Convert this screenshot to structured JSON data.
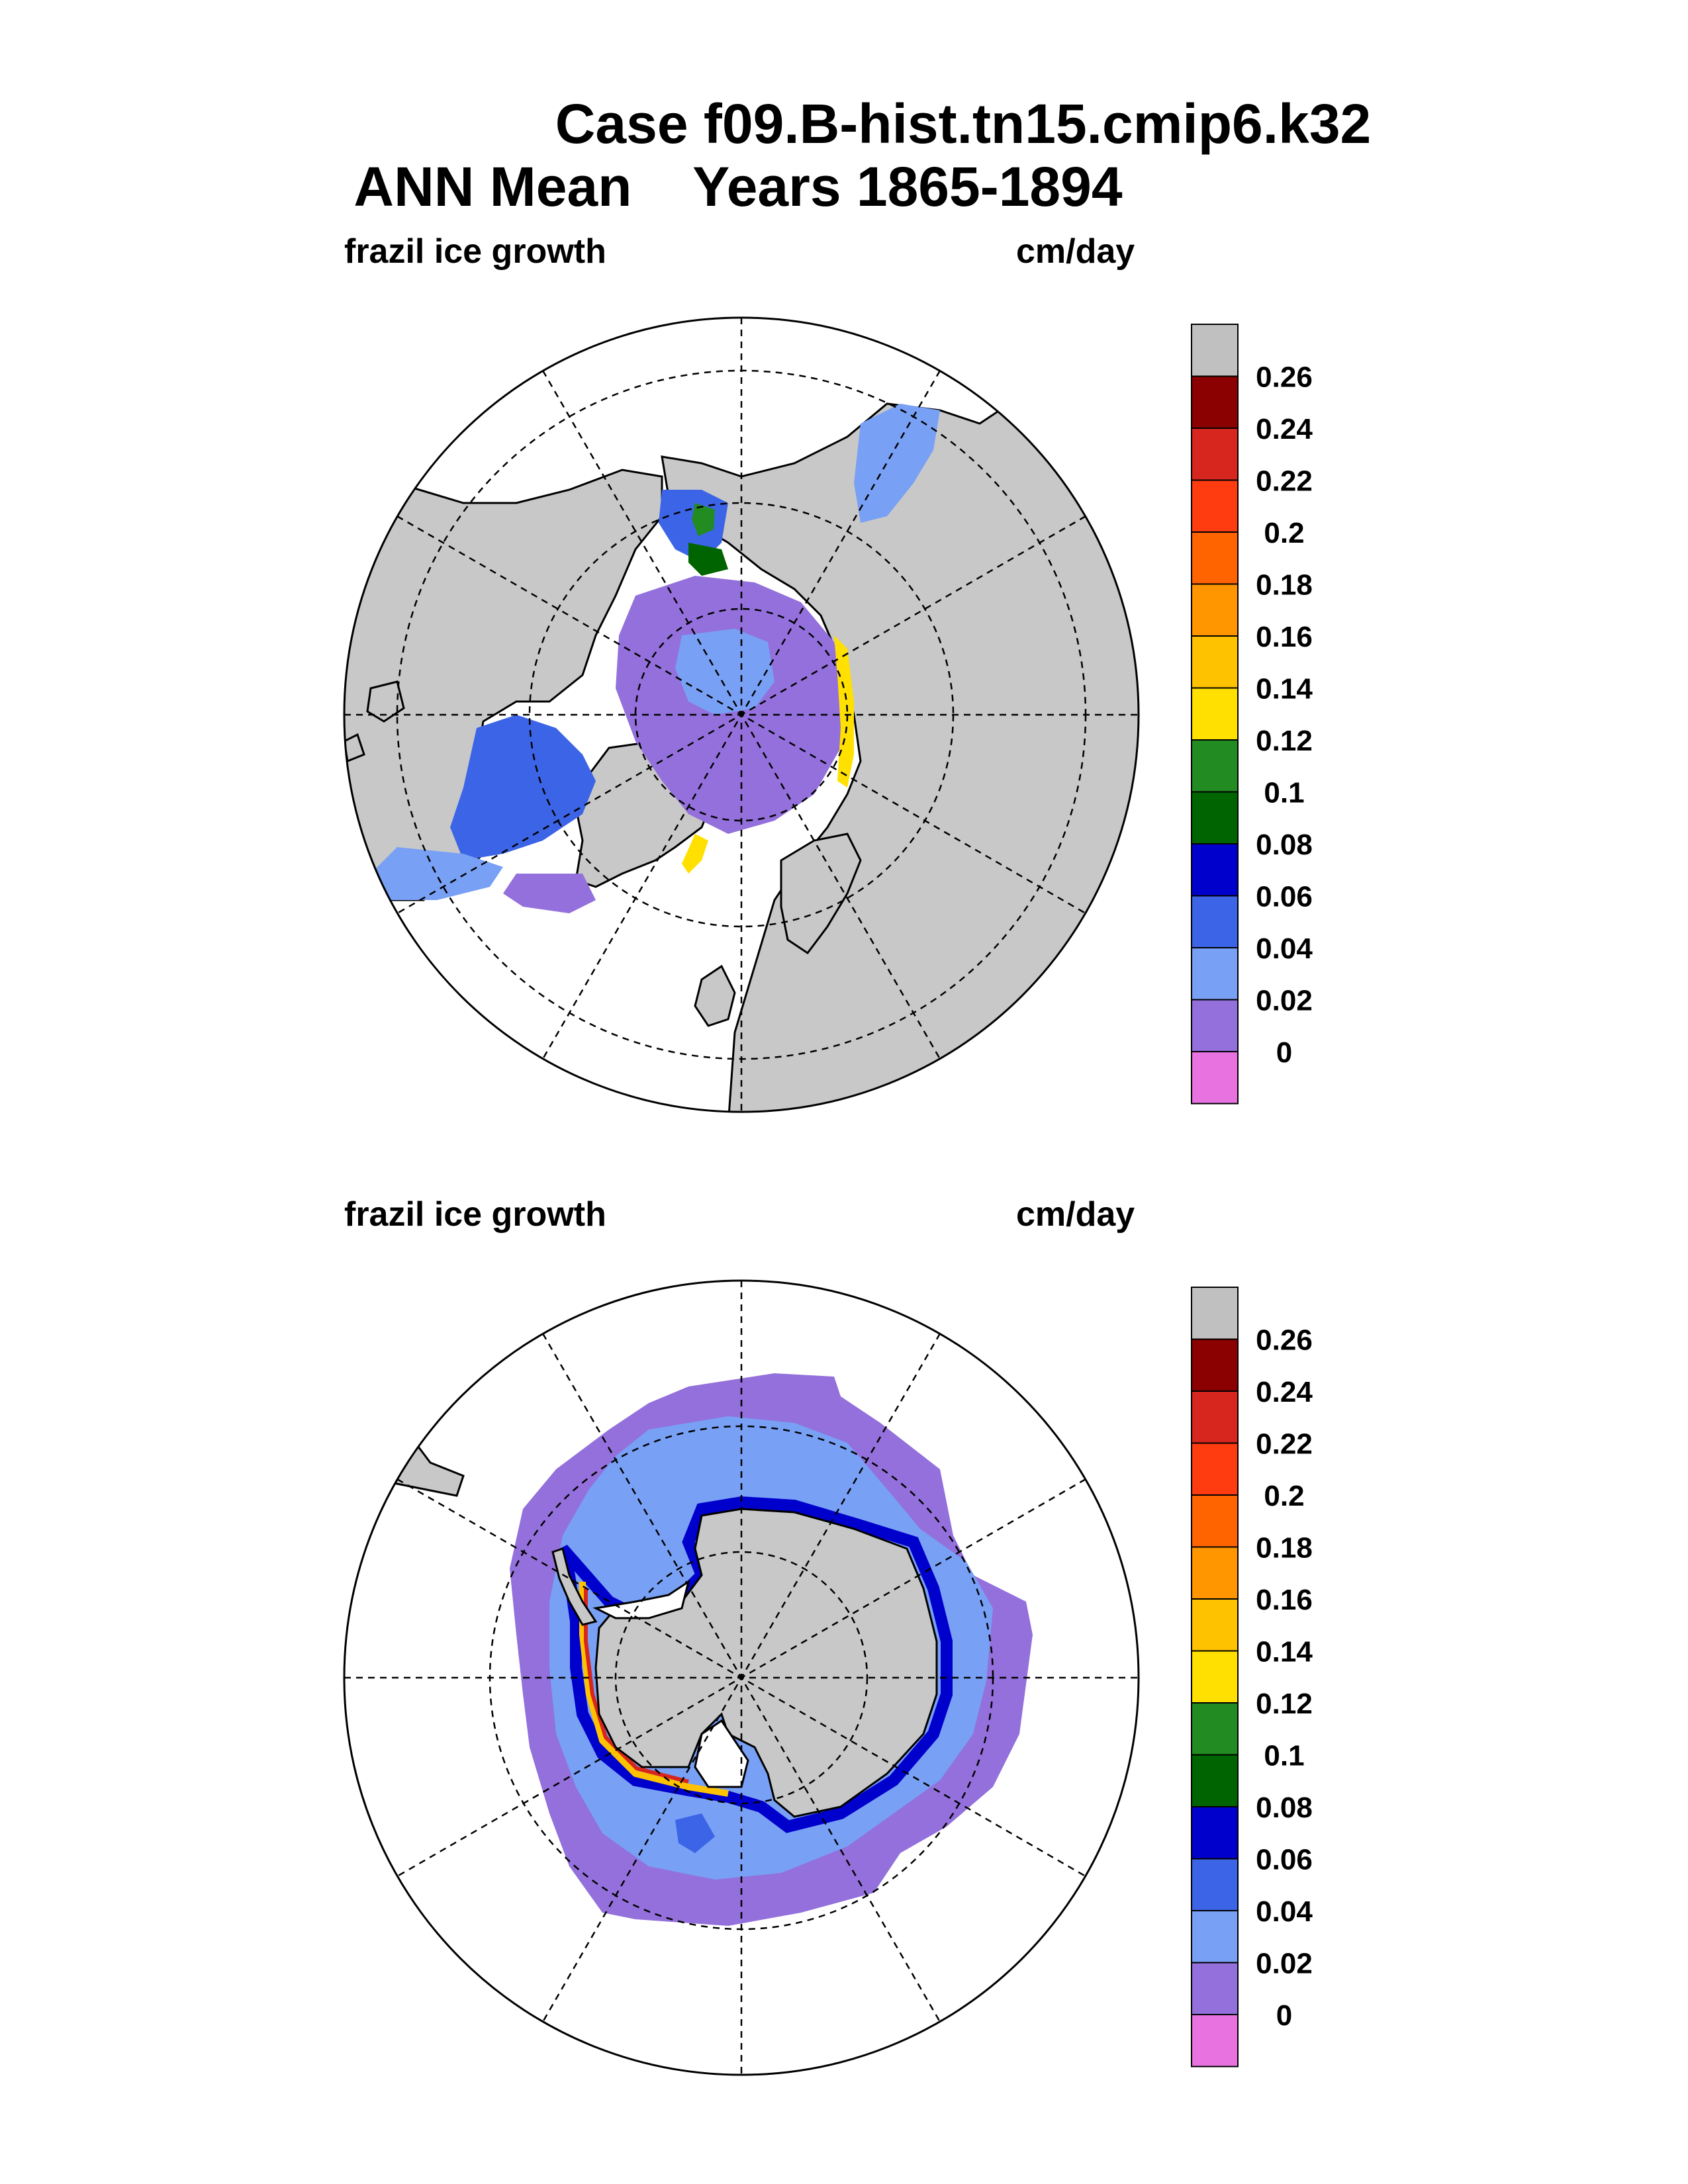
{
  "title_line1": "Case f09.B-hist.tn15.cmip6.k32",
  "title_line2": "ANN Mean    Years 1865-1894",
  "colors": {
    "land": "#c8c8c8",
    "no_ice": "#ffffff",
    "ocean_frame": "#000000"
  },
  "chart_data": [
    {
      "type": "heatmap",
      "projection": "north-polar-stereographic",
      "title": "frazil ice growth",
      "units": "cm/day",
      "colorbar": {
        "levels": [
          "0.26",
          "0.24",
          "0.22",
          "0.2",
          "0.18",
          "0.16",
          "0.14",
          "0.12",
          "0.1",
          "0.08",
          "0.06",
          "0.04",
          "0.02",
          "0"
        ],
        "colors": [
          "#c0c0c0",
          "#8b0000",
          "#d7261e",
          "#ff3b10",
          "#ff6400",
          "#ff9600",
          "#ffc200",
          "#ffe000",
          "#228b22",
          "#006400",
          "#0000cd",
          "#3c64e6",
          "#78a0f5",
          "#9370db",
          "#e873e0"
        ]
      }
    },
    {
      "type": "heatmap",
      "projection": "south-polar-stereographic",
      "title": "frazil ice growth",
      "units": "cm/day",
      "colorbar": {
        "levels": [
          "0.26",
          "0.24",
          "0.22",
          "0.2",
          "0.18",
          "0.16",
          "0.14",
          "0.12",
          "0.1",
          "0.08",
          "0.06",
          "0.04",
          "0.02",
          "0"
        ],
        "colors": [
          "#c0c0c0",
          "#8b0000",
          "#d7261e",
          "#ff3b10",
          "#ff6400",
          "#ff9600",
          "#ffc200",
          "#ffe000",
          "#228b22",
          "#006400",
          "#0000cd",
          "#3c64e6",
          "#78a0f5",
          "#9370db",
          "#e873e0"
        ]
      }
    }
  ]
}
